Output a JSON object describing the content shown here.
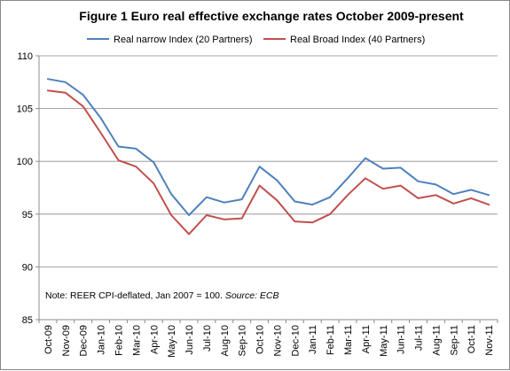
{
  "chart_data": {
    "type": "line",
    "title": "Figure 1   Euro real effective exchange rates October 2009-present",
    "xlabel": "",
    "ylabel": "",
    "ylim": [
      85,
      110
    ],
    "yticks": [
      85,
      90,
      95,
      100,
      105,
      110
    ],
    "grid": true,
    "legend_position": "top",
    "categories": [
      "Oct-09",
      "Nov-09",
      "Dec-09",
      "Jan-10",
      "Feb-10",
      "Mar-10",
      "Apr-10",
      "May-10",
      "Jun-10",
      "Jul-10",
      "Aug-10",
      "Sep-10",
      "Oct-10",
      "Nov-10",
      "Dec-10",
      "Jan-11",
      "Feb-11",
      "Mar-11",
      "Apr-11",
      "May-11",
      "Jun-11",
      "Jul-11",
      "Aug-11",
      "Sep-11",
      "Oct-11",
      "Nov-11"
    ],
    "series": [
      {
        "name": "Real narrow Index (20 Partners)",
        "color": "#4f81bd",
        "values": [
          107.8,
          107.5,
          106.3,
          104.1,
          101.4,
          101.2,
          99.9,
          96.9,
          94.9,
          96.6,
          96.1,
          96.4,
          99.5,
          98.2,
          96.2,
          95.9,
          96.6,
          98.4,
          100.3,
          99.3,
          99.4,
          98.1,
          97.8,
          96.9,
          97.3,
          96.8
        ]
      },
      {
        "name": "Real Broad Index (40 Partners)",
        "color": "#c0504d",
        "values": [
          106.7,
          106.5,
          105.2,
          102.7,
          100.1,
          99.5,
          97.9,
          94.9,
          93.1,
          94.9,
          94.5,
          94.6,
          97.7,
          96.3,
          94.3,
          94.2,
          95.0,
          96.8,
          98.4,
          97.4,
          97.7,
          96.5,
          96.8,
          96.0,
          96.5,
          95.9
        ]
      }
    ],
    "note": {
      "text": "Note: REER CPI-deflated, Jan 2007 = 100. ",
      "source": "Source: ECB"
    }
  }
}
